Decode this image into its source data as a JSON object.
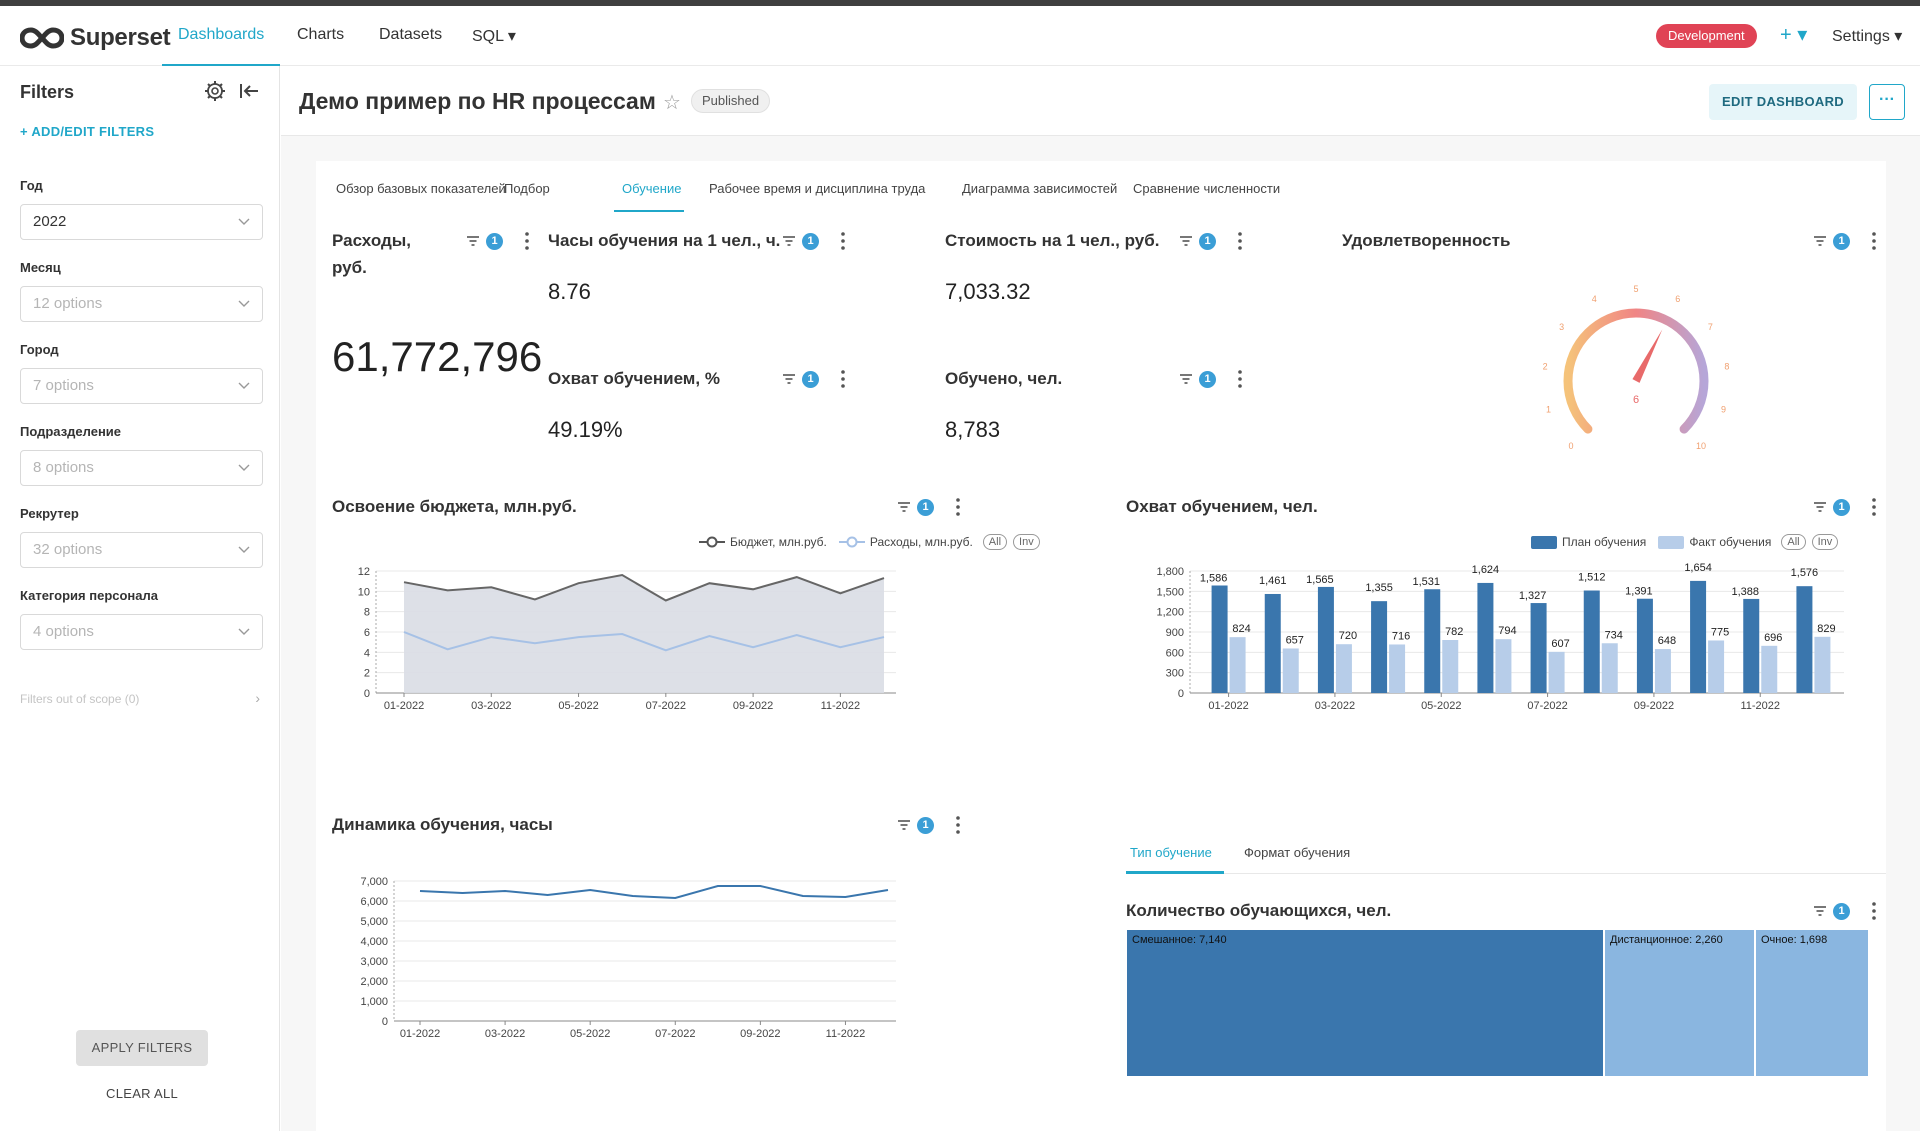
{
  "nav": {
    "logo_text": "Superset",
    "items": [
      "Dashboards",
      "Charts",
      "Datasets",
      "SQL ▾"
    ],
    "env_badge": "Development",
    "plus": "+ ▾",
    "settings": "Settings ▾"
  },
  "filters": {
    "title": "Filters",
    "add_edit": "+ ADD/EDIT FILTERS",
    "items": [
      {
        "label": "Год",
        "value": "2022",
        "placeholder": false
      },
      {
        "label": "Месяц",
        "value": "12 options",
        "placeholder": true
      },
      {
        "label": "Город",
        "value": "7 options",
        "placeholder": true
      },
      {
        "label": "Подразделение",
        "value": "8 options",
        "placeholder": true
      },
      {
        "label": "Рекрутер",
        "value": "32 options",
        "placeholder": true
      },
      {
        "label": "Категория персонала",
        "value": "4 options",
        "placeholder": true
      }
    ],
    "out_of_scope": "Filters out of scope (0)",
    "apply": "APPLY FILTERS",
    "clear": "CLEAR ALL"
  },
  "dashboard": {
    "title": "Демо пример по HR процессам",
    "status": "Published",
    "edit_button": "EDIT DASHBOARD",
    "more_button": "···",
    "tabs": [
      "Обзор базовых показателей",
      "Подбор",
      "Обучение",
      "Рабочее время и дисциплина труда",
      "Диаграмма зависимостей",
      "Сравнение численности"
    ],
    "active_tab": "Обучение"
  },
  "kpis": {
    "expenses": {
      "title_line1": "Расходы,",
      "title_line2": "руб.",
      "value": "61,772,796"
    },
    "hours_per_person": {
      "title": "Часы обучения на 1 чел., ч.",
      "value": "8.76"
    },
    "cost_per_person": {
      "title": "Стоимость на 1 чел., руб.",
      "value": "7,033.32"
    },
    "coverage_pct": {
      "title": "Охват обучением, %",
      "value": "49.19%"
    },
    "trained": {
      "title": "Обучено, чел.",
      "value": "8,783"
    },
    "satisfaction": {
      "title": "Удовлетворенность",
      "value": "6",
      "min": 0,
      "max": 10,
      "ticks": [
        "0",
        "1",
        "2",
        "3",
        "4",
        "5",
        "6",
        "7",
        "8",
        "9",
        "10"
      ]
    }
  },
  "filter_badge": "1",
  "chart_data": [
    {
      "id": "budget",
      "type": "area",
      "title": "Освоение бюджета, млн.руб.",
      "legend": [
        "Бюджет, млн.руб.",
        "Расходы, млн.руб.",
        "All",
        "Inv"
      ],
      "x": [
        "01-2022",
        "02-2022",
        "03-2022",
        "04-2022",
        "05-2022",
        "06-2022",
        "07-2022",
        "08-2022",
        "09-2022",
        "10-2022",
        "11-2022",
        "12-2022"
      ],
      "x_tick_labels": [
        "01-2022",
        "03-2022",
        "05-2022",
        "07-2022",
        "09-2022",
        "11-2022"
      ],
      "series": [
        {
          "name": "Бюджет, млн.руб.",
          "values": [
            10.9,
            10.1,
            10.4,
            9.2,
            10.8,
            11.6,
            9.1,
            10.8,
            10.2,
            11.4,
            9.8,
            11.3
          ]
        },
        {
          "name": "Расходы, млн.руб.",
          "values": [
            6.0,
            4.3,
            5.5,
            4.9,
            5.5,
            5.8,
            4.2,
            5.6,
            4.5,
            5.7,
            4.5,
            5.5
          ]
        }
      ],
      "y_ticks": [
        "0",
        "2",
        "4",
        "6",
        "8",
        "10",
        "12"
      ],
      "ylim": [
        0,
        12
      ]
    },
    {
      "id": "coverage",
      "type": "bar",
      "title": "Охват обучением, чел.",
      "legend": [
        "План обучения",
        "Факт обучения",
        "All",
        "Inv"
      ],
      "x": [
        "01-2022",
        "02-2022",
        "03-2022",
        "04-2022",
        "05-2022",
        "06-2022",
        "07-2022",
        "08-2022",
        "09-2022",
        "10-2022",
        "11-2022",
        "12-2022"
      ],
      "x_tick_labels": [
        "01-2022",
        "03-2022",
        "05-2022",
        "07-2022",
        "09-2022",
        "11-2022"
      ],
      "series": [
        {
          "name": "План обучения",
          "values": [
            1586,
            1461,
            1565,
            1355,
            1531,
            1624,
            1327,
            1512,
            1391,
            1654,
            1388,
            1576
          ],
          "labels": [
            "1,586",
            "1,461",
            "1,565",
            "1,355",
            "1,531",
            "1,624",
            "1,327",
            "1,512",
            "1,391",
            "1,654",
            "1,388",
            "1,576"
          ]
        },
        {
          "name": "Факт обучения",
          "values": [
            824,
            657,
            720,
            716,
            782,
            794,
            607,
            734,
            648,
            775,
            696,
            829
          ],
          "labels": [
            "824",
            "657",
            "720",
            "716",
            "782",
            "794",
            "607",
            "734",
            "648",
            "775",
            "696",
            "829"
          ]
        }
      ],
      "y_ticks": [
        "0",
        "300",
        "600",
        "900",
        "1,200",
        "1,500",
        "1,800"
      ],
      "ylim": [
        0,
        1800
      ]
    },
    {
      "id": "dynamics",
      "type": "line",
      "title": "Динамика обучения, часы",
      "x": [
        "01-2022",
        "02-2022",
        "03-2022",
        "04-2022",
        "05-2022",
        "06-2022",
        "07-2022",
        "08-2022",
        "09-2022",
        "10-2022",
        "11-2022",
        "12-2022"
      ],
      "x_tick_labels": [
        "01-2022",
        "03-2022",
        "05-2022",
        "07-2022",
        "09-2022",
        "11-2022"
      ],
      "series": [
        {
          "values": [
            6500,
            6400,
            6500,
            6300,
            6550,
            6250,
            6150,
            6750,
            6750,
            6250,
            6200,
            6550
          ]
        }
      ],
      "y_ticks": [
        "0",
        "1,000",
        "2,000",
        "3,000",
        "4,000",
        "5,000",
        "6,000",
        "7,000"
      ],
      "ylim": [
        0,
        7000
      ]
    },
    {
      "id": "learners",
      "type": "treemap",
      "title": "Количество обучающихся, чел.",
      "subtabs": [
        "Тип обучение",
        "Формат обучения"
      ],
      "items": [
        {
          "label": "Смешанное: 7,140",
          "value": 7140,
          "color": "#3a76ad"
        },
        {
          "label": "Дистанционное: 2,260",
          "value": 2260,
          "color": "#8ab6e0"
        },
        {
          "label": "Очное: 1,698",
          "value": 1698,
          "color": "#8ab6e0"
        }
      ]
    }
  ],
  "colors": {
    "accent": "#20a7c9",
    "env": "#e04355",
    "bar_plan": "#3a76ad",
    "bar_fact": "#b7cde9",
    "budget_line": "#666666",
    "expense_line": "#a6c1e6"
  }
}
